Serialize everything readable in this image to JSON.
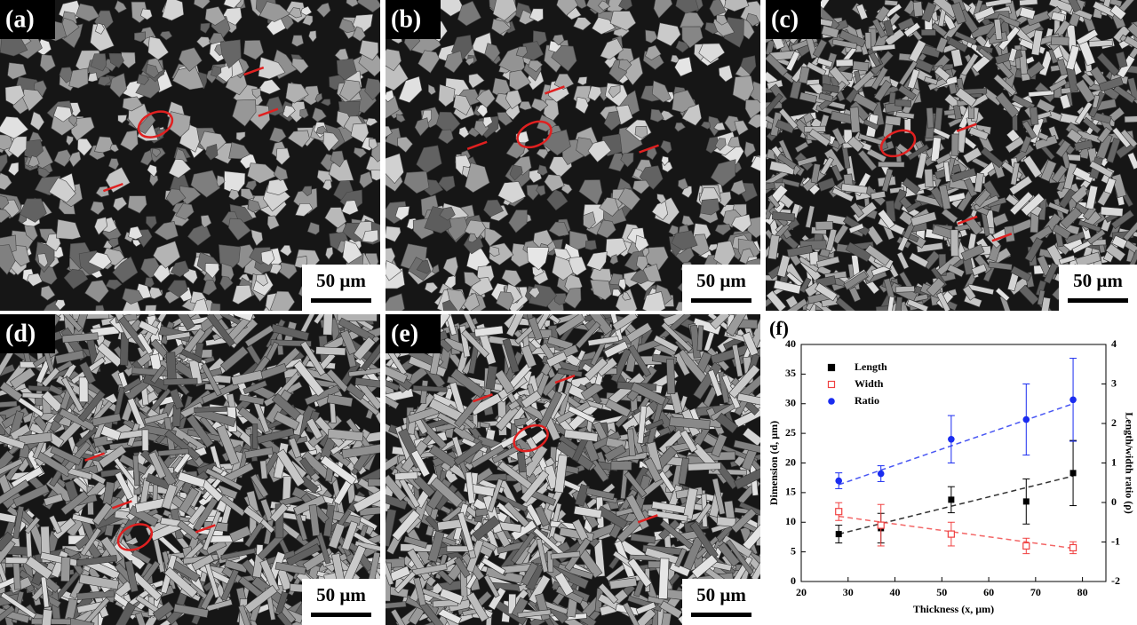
{
  "panels": [
    {
      "label": "(a)",
      "scale_bar": "50 µm"
    },
    {
      "label": "(b)",
      "scale_bar": "50 µm"
    },
    {
      "label": "(c)",
      "scale_bar": "50 µm"
    },
    {
      "label": "(d)",
      "scale_bar": "50 µm"
    },
    {
      "label": "(e)",
      "scale_bar": "50 µm"
    }
  ],
  "chart_data": {
    "type": "scatter",
    "panel_label": "(f)",
    "x_label": "Thickness (x, µm)",
    "y_label": "Dimension (d, µm)",
    "y2_label": "Length/width ratio (ρ)",
    "x": [
      28,
      37,
      52,
      68,
      78
    ],
    "xlim": [
      20,
      85
    ],
    "xticks": [
      20,
      30,
      40,
      50,
      60,
      70,
      80
    ],
    "ylim": [
      0,
      40
    ],
    "yticks": [
      0,
      5,
      10,
      15,
      20,
      25,
      30,
      35,
      40
    ],
    "y2lim": [
      -2,
      4
    ],
    "y2ticks": [
      -2,
      -1,
      0,
      1,
      2,
      3,
      4
    ],
    "legend": "upper left",
    "series": [
      {
        "name": "Length",
        "color": "#000000",
        "marker": "square",
        "values": [
          8,
          9,
          13.8,
          13.5,
          18.3
        ],
        "errors": [
          1.5,
          2.5,
          2.2,
          3.8,
          5.5
        ],
        "trend": {
          "x": [
            28,
            78
          ],
          "values": [
            8,
            17.8
          ]
        }
      },
      {
        "name": "Width",
        "color": "#f04040",
        "marker": "open-square",
        "values": [
          11.8,
          9.5,
          8,
          6,
          5.7
        ],
        "errors": [
          1.5,
          3.5,
          2,
          1.3,
          1
        ],
        "trend": {
          "x": [
            28,
            78
          ],
          "values": [
            11,
            5.6
          ]
        }
      },
      {
        "name": "Ratio",
        "color": "#1a2cf0",
        "marker": "circle",
        "axis": "y2",
        "values": [
          0.55,
          0.73,
          1.6,
          2.1,
          2.6
        ],
        "errors": [
          0.2,
          0.2,
          0.6,
          0.9,
          1.05
        ],
        "trend": {
          "x": [
            28,
            78
          ],
          "values": [
            0.45,
            2.5
          ]
        }
      }
    ]
  }
}
